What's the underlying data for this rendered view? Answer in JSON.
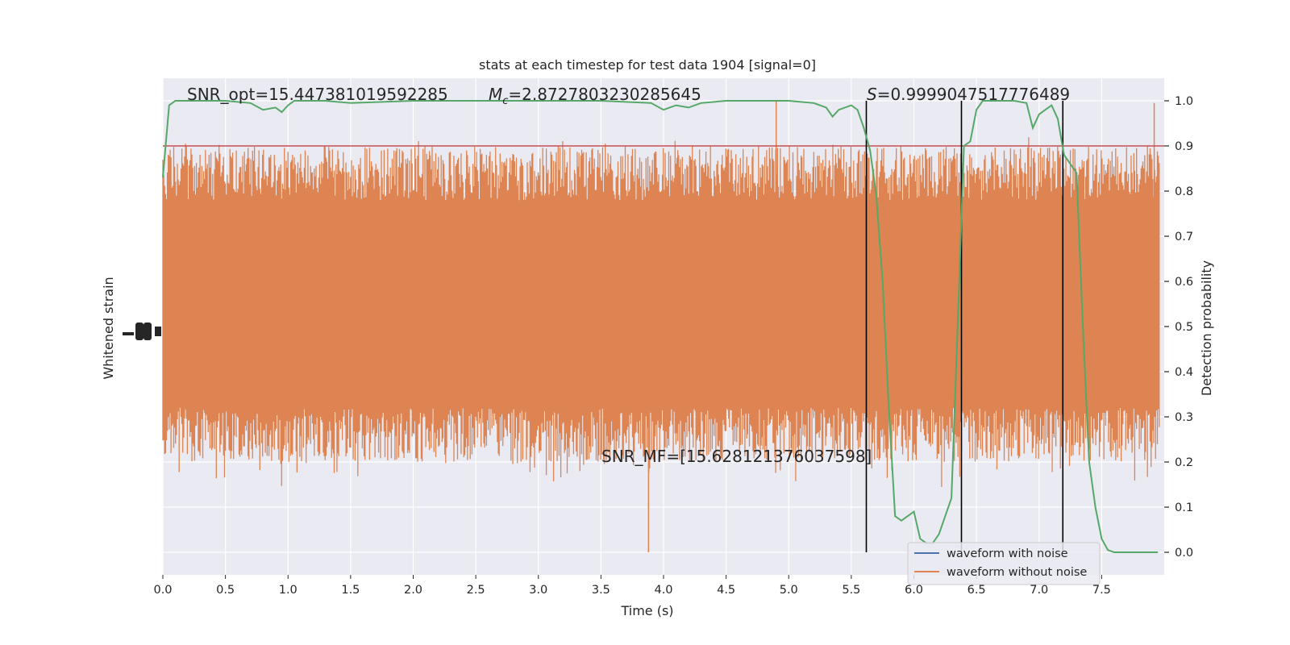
{
  "chart_data": {
    "type": "line",
    "title": "stats at each timestep for test data 1904 [signal=0]",
    "xlabel": "Time (s)",
    "ylabel_left": "Whitened strain",
    "ylabel_right": "Detection probability",
    "xlim": [
      0.0,
      8.0
    ],
    "ylim_right": [
      -0.05,
      1.05
    ],
    "x_ticks": [
      "0.0",
      "0.5",
      "1.0",
      "1.5",
      "2.0",
      "2.5",
      "3.0",
      "3.5",
      "4.0",
      "4.5",
      "5.0",
      "5.5",
      "6.0",
      "6.5",
      "7.0",
      "7.5"
    ],
    "x_tick_values": [
      0.0,
      0.5,
      1.0,
      1.5,
      2.0,
      2.5,
      3.0,
      3.5,
      4.0,
      4.5,
      5.0,
      5.5,
      6.0,
      6.5,
      7.0,
      7.5
    ],
    "y_ticks_right": [
      "0.0",
      "0.1",
      "0.2",
      "0.3",
      "0.4",
      "0.5",
      "0.6",
      "0.7",
      "0.8",
      "0.9",
      "1.0"
    ],
    "y_tick_values_right": [
      0.0,
      0.1,
      0.2,
      0.3,
      0.4,
      0.5,
      0.6,
      0.7,
      0.8,
      0.9,
      1.0
    ],
    "grid": true,
    "colors": {
      "background": "#eaeaf2",
      "grid": "#ffffff",
      "noise": "#dd8452",
      "with_noise": "#4c72b0",
      "probability": "#55a868",
      "threshold": "#c44e52",
      "vlines": "#000000"
    },
    "legend": {
      "placement": "lower-right",
      "entries": [
        {
          "label": "waveform with noise",
          "color": "#4c72b0"
        },
        {
          "label": "waveform without noise",
          "color": "#dd8452"
        }
      ]
    },
    "annotations": {
      "snr_opt": "SNR_opt=15.447381019592285",
      "mc_symbol": "M",
      "mc_sub": "c",
      "mc_value": "=2.8727803230285645",
      "s_symbol": "S",
      "s_value": "=0.9999047517776489",
      "snr_mf": "SNR_MF=[15.628121376037598]"
    },
    "threshold": 0.9,
    "vertical_lines_x": [
      5.62,
      6.38,
      7.19
    ],
    "strain_envelope": {
      "x": [
        0.0,
        8.0
      ],
      "fill_between_probability": [
        0.3,
        0.8
      ],
      "peak_upper": 1.0,
      "peak_lower": 0.0
    },
    "probability_series": {
      "name": "Detection probability",
      "x": [
        0.0,
        0.05,
        0.1,
        0.2,
        0.5,
        0.7,
        0.8,
        0.9,
        0.95,
        1.0,
        1.05,
        1.1,
        1.3,
        1.5,
        2.0,
        2.5,
        3.0,
        3.5,
        3.9,
        4.0,
        4.1,
        4.2,
        4.3,
        4.5,
        5.0,
        5.2,
        5.3,
        5.35,
        5.4,
        5.5,
        5.55,
        5.6,
        5.65,
        5.7,
        5.75,
        5.8,
        5.85,
        5.9,
        6.0,
        6.05,
        6.1,
        6.15,
        6.2,
        6.3,
        6.35,
        6.4,
        6.45,
        6.5,
        6.55,
        6.6,
        6.7,
        6.8,
        6.9,
        6.95,
        7.0,
        7.05,
        7.1,
        7.15,
        7.2,
        7.25,
        7.3,
        7.35,
        7.4,
        7.45,
        7.5,
        7.55,
        7.6,
        7.7,
        7.8,
        7.95
      ],
      "values": [
        0.83,
        0.99,
        1.0,
        1.0,
        1.0,
        0.995,
        0.98,
        0.985,
        0.975,
        0.99,
        1.0,
        1.0,
        1.0,
        0.995,
        1.0,
        1.0,
        1.0,
        1.0,
        0.995,
        0.98,
        0.99,
        0.985,
        0.995,
        1.0,
        1.0,
        0.995,
        0.985,
        0.965,
        0.98,
        0.99,
        0.98,
        0.94,
        0.89,
        0.79,
        0.6,
        0.32,
        0.08,
        0.07,
        0.09,
        0.03,
        0.02,
        0.02,
        0.04,
        0.12,
        0.5,
        0.9,
        0.91,
        0.98,
        1.0,
        1.0,
        1.0,
        1.0,
        0.995,
        0.94,
        0.97,
        0.98,
        0.99,
        0.96,
        0.88,
        0.86,
        0.84,
        0.5,
        0.2,
        0.1,
        0.03,
        0.005,
        0.0,
        0.0,
        0.0,
        0.0
      ]
    }
  }
}
